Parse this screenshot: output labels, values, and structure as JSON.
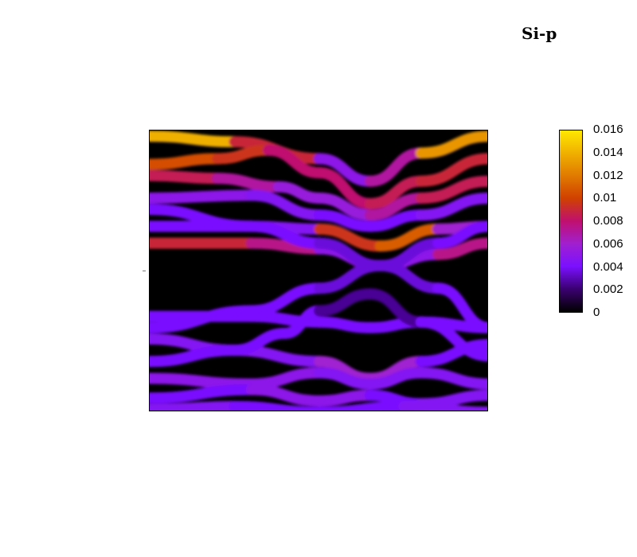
{
  "chart_data": {
    "type": "heatmap",
    "title": "Si-p",
    "xlabel": "",
    "ylabel": "",
    "colorbar": {
      "min": 0,
      "max": 0.016,
      "ticks": [
        "0",
        "0.002",
        "0.004",
        "0.006",
        "0.008",
        "0.01",
        "0.012",
        "0.014",
        "0.016"
      ],
      "colormap": [
        "#000000",
        "#3a0070",
        "#7a10ff",
        "#a020d0",
        "#c01070",
        "#d04000",
        "#e07a00",
        "#f0b000",
        "#ffe800"
      ]
    },
    "bands": [
      {
        "name": "b1",
        "points": [
          [
            0,
            0.98
          ],
          [
            0.25,
            0.96
          ],
          [
            0.5,
            0.9
          ],
          [
            0.65,
            0.82
          ],
          [
            0.8,
            0.92
          ],
          [
            1,
            0.98
          ]
        ],
        "weight": [
          0.016,
          0.012,
          0.006,
          0.004,
          0.01,
          0.016
        ]
      },
      {
        "name": "b2",
        "points": [
          [
            0,
            0.88
          ],
          [
            0.2,
            0.9
          ],
          [
            0.35,
            0.93
          ],
          [
            0.5,
            0.85
          ],
          [
            0.65,
            0.74
          ],
          [
            0.8,
            0.82
          ],
          [
            1,
            0.9
          ]
        ],
        "weight": [
          0.011,
          0.01,
          0.009,
          0.007,
          0.009,
          0.008,
          0.01
        ]
      },
      {
        "name": "b3",
        "points": [
          [
            0,
            0.84
          ],
          [
            0.2,
            0.83
          ],
          [
            0.38,
            0.8
          ],
          [
            0.5,
            0.76
          ],
          [
            0.65,
            0.7
          ],
          [
            0.8,
            0.76
          ],
          [
            1,
            0.82
          ]
        ],
        "weight": [
          0.009,
          0.008,
          0.006,
          0.005,
          0.006,
          0.008,
          0.009
        ]
      },
      {
        "name": "b4",
        "points": [
          [
            0,
            0.76
          ],
          [
            0.3,
            0.77
          ],
          [
            0.5,
            0.7
          ],
          [
            0.65,
            0.66
          ],
          [
            0.8,
            0.7
          ],
          [
            1,
            0.76
          ]
        ],
        "weight": [
          0.005,
          0.005,
          0.004,
          0.004,
          0.004,
          0.005
        ]
      },
      {
        "name": "b5",
        "points": [
          [
            0,
            0.66
          ],
          [
            0.3,
            0.66
          ],
          [
            0.5,
            0.65
          ],
          [
            0.68,
            0.59
          ],
          [
            0.85,
            0.65
          ],
          [
            1,
            0.66
          ]
        ],
        "weight": [
          0.004,
          0.004,
          0.005,
          0.014,
          0.008,
          0.004
        ]
      },
      {
        "name": "b6",
        "points": [
          [
            0,
            0.6
          ],
          [
            0.3,
            0.6
          ],
          [
            0.5,
            0.58
          ],
          [
            0.68,
            0.52
          ],
          [
            0.85,
            0.56
          ],
          [
            1,
            0.6
          ]
        ],
        "weight": [
          0.009,
          0.009,
          0.006,
          0.004,
          0.006,
          0.009
        ]
      },
      {
        "name": "d1",
        "points": [
          [
            0,
            0.3
          ],
          [
            0.3,
            0.36
          ],
          [
            0.5,
            0.44
          ],
          [
            0.68,
            0.52
          ],
          [
            0.85,
            0.6
          ],
          [
            1,
            0.66
          ]
        ],
        "weight": [
          0.004,
          0.004,
          0.004,
          0.003,
          0.004,
          0.004
        ]
      },
      {
        "name": "d2",
        "points": [
          [
            0,
            0.72
          ],
          [
            0.3,
            0.66
          ],
          [
            0.5,
            0.6
          ],
          [
            0.68,
            0.52
          ],
          [
            0.85,
            0.44
          ],
          [
            1,
            0.3
          ]
        ],
        "weight": [
          0.004,
          0.004,
          0.004,
          0.003,
          0.004,
          0.004
        ]
      },
      {
        "name": "v1",
        "points": [
          [
            0,
            0.34
          ],
          [
            0.3,
            0.34
          ],
          [
            0.5,
            0.32
          ],
          [
            0.65,
            0.3
          ],
          [
            0.8,
            0.32
          ],
          [
            1,
            0.3
          ]
        ],
        "weight": [
          0.004,
          0.004,
          0.004,
          0.004,
          0.004,
          0.004
        ]
      },
      {
        "name": "v2",
        "points": [
          [
            0,
            0.26
          ],
          [
            0.25,
            0.22
          ],
          [
            0.5,
            0.18
          ],
          [
            0.65,
            0.12
          ],
          [
            0.8,
            0.18
          ],
          [
            1,
            0.24
          ]
        ],
        "weight": [
          0.004,
          0.005,
          0.004,
          0.008,
          0.004,
          0.004
        ]
      },
      {
        "name": "v3",
        "points": [
          [
            0,
            0.18
          ],
          [
            0.25,
            0.22
          ],
          [
            0.4,
            0.28
          ],
          [
            0.5,
            0.36
          ],
          [
            0.65,
            0.42
          ],
          [
            0.8,
            0.32
          ],
          [
            1,
            0.2
          ]
        ],
        "weight": [
          0.004,
          0.004,
          0.004,
          0.004,
          0.001,
          0.004,
          0.004
        ]
      },
      {
        "name": "v4",
        "points": [
          [
            0,
            0.12
          ],
          [
            0.3,
            0.1
          ],
          [
            0.5,
            0.14
          ],
          [
            0.65,
            0.1
          ],
          [
            0.8,
            0.14
          ],
          [
            1,
            0.1
          ]
        ],
        "weight": [
          0.004,
          0.006,
          0.004,
          0.005,
          0.004,
          0.005
        ]
      },
      {
        "name": "v5",
        "points": [
          [
            0,
            0.05
          ],
          [
            0.3,
            0.08
          ],
          [
            0.5,
            0.04
          ],
          [
            0.65,
            0.06
          ],
          [
            0.8,
            0.03
          ],
          [
            1,
            0.06
          ]
        ],
        "weight": [
          0.004,
          0.004,
          0.006,
          0.004,
          0.004,
          0.005
        ]
      },
      {
        "name": "v6",
        "points": [
          [
            0,
            0.01
          ],
          [
            0.25,
            0.02
          ],
          [
            0.5,
            0.0
          ],
          [
            0.75,
            0.02
          ],
          [
            1,
            0.0
          ]
        ],
        "weight": [
          0.005,
          0.004,
          0.004,
          0.004,
          0.005
        ]
      }
    ]
  }
}
